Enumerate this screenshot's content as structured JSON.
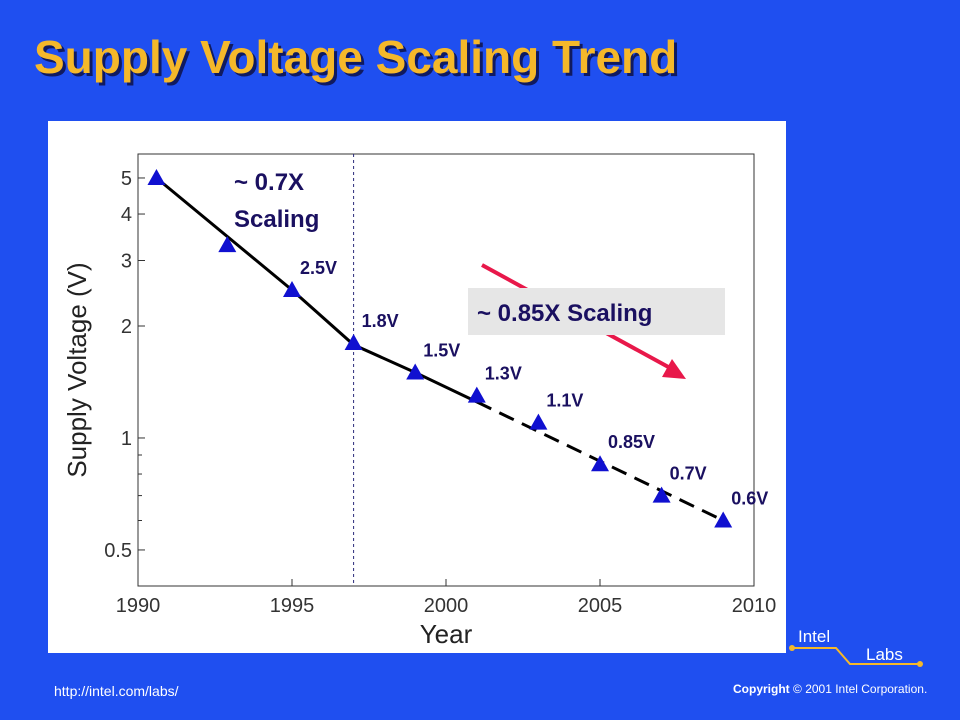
{
  "slide": {
    "title": "Supply Voltage Scaling Trend",
    "footer_url": "http://intel.com/labs/",
    "copyright_bold": "Copyright",
    "copyright_rest": "© 2001 Intel Corporation.",
    "logo": {
      "line1": "Intel",
      "line2": "Labs"
    }
  },
  "chart_data": {
    "type": "scatter",
    "xlabel": "Year",
    "ylabel": "Supply Voltage (V)",
    "xlim": [
      1990,
      2010
    ],
    "ylim": [
      0.4,
      5.8
    ],
    "yscale": "log",
    "x_ticks": [
      1990,
      1995,
      2000,
      2005,
      2010
    ],
    "y_ticks": [
      0.5,
      1,
      2,
      3,
      4,
      5
    ],
    "y_tick_labels": [
      "0.5",
      "1",
      "2",
      "3",
      "4",
      "5"
    ],
    "grid": false,
    "series": [
      {
        "marker": "triangle",
        "color": "#1010d0",
        "x": [
          1990.6,
          1992.9,
          1995,
          1997,
          1999,
          2001,
          2003,
          2005,
          2007,
          2009
        ],
        "y": [
          5.0,
          3.3,
          2.5,
          1.8,
          1.5,
          1.3,
          1.1,
          0.85,
          0.7,
          0.6
        ],
        "labels": [
          "",
          "",
          "2.5V",
          "1.8V",
          "1.5V",
          "1.3V",
          "1.1V",
          "0.85V",
          "0.7V",
          "0.6V"
        ]
      }
    ],
    "trend_solid": {
      "x": [
        1990.6,
        1995,
        1997,
        1999,
        2001
      ],
      "y": [
        5.0,
        2.5,
        1.78,
        1.5,
        1.25
      ]
    },
    "trend_dashed": {
      "x": [
        2001,
        2009
      ],
      "y": [
        1.25,
        0.6
      ]
    },
    "divider_year": 1997,
    "annotations": {
      "left_line1": "~ 0.7X",
      "left_line2": "Scaling",
      "right": "~ 0.85X Scaling"
    },
    "colors": {
      "marker": "#1010d0",
      "arrow": "#e8184a",
      "label_text": "#1a1060",
      "annotation_box": "#e6e6e6"
    }
  }
}
